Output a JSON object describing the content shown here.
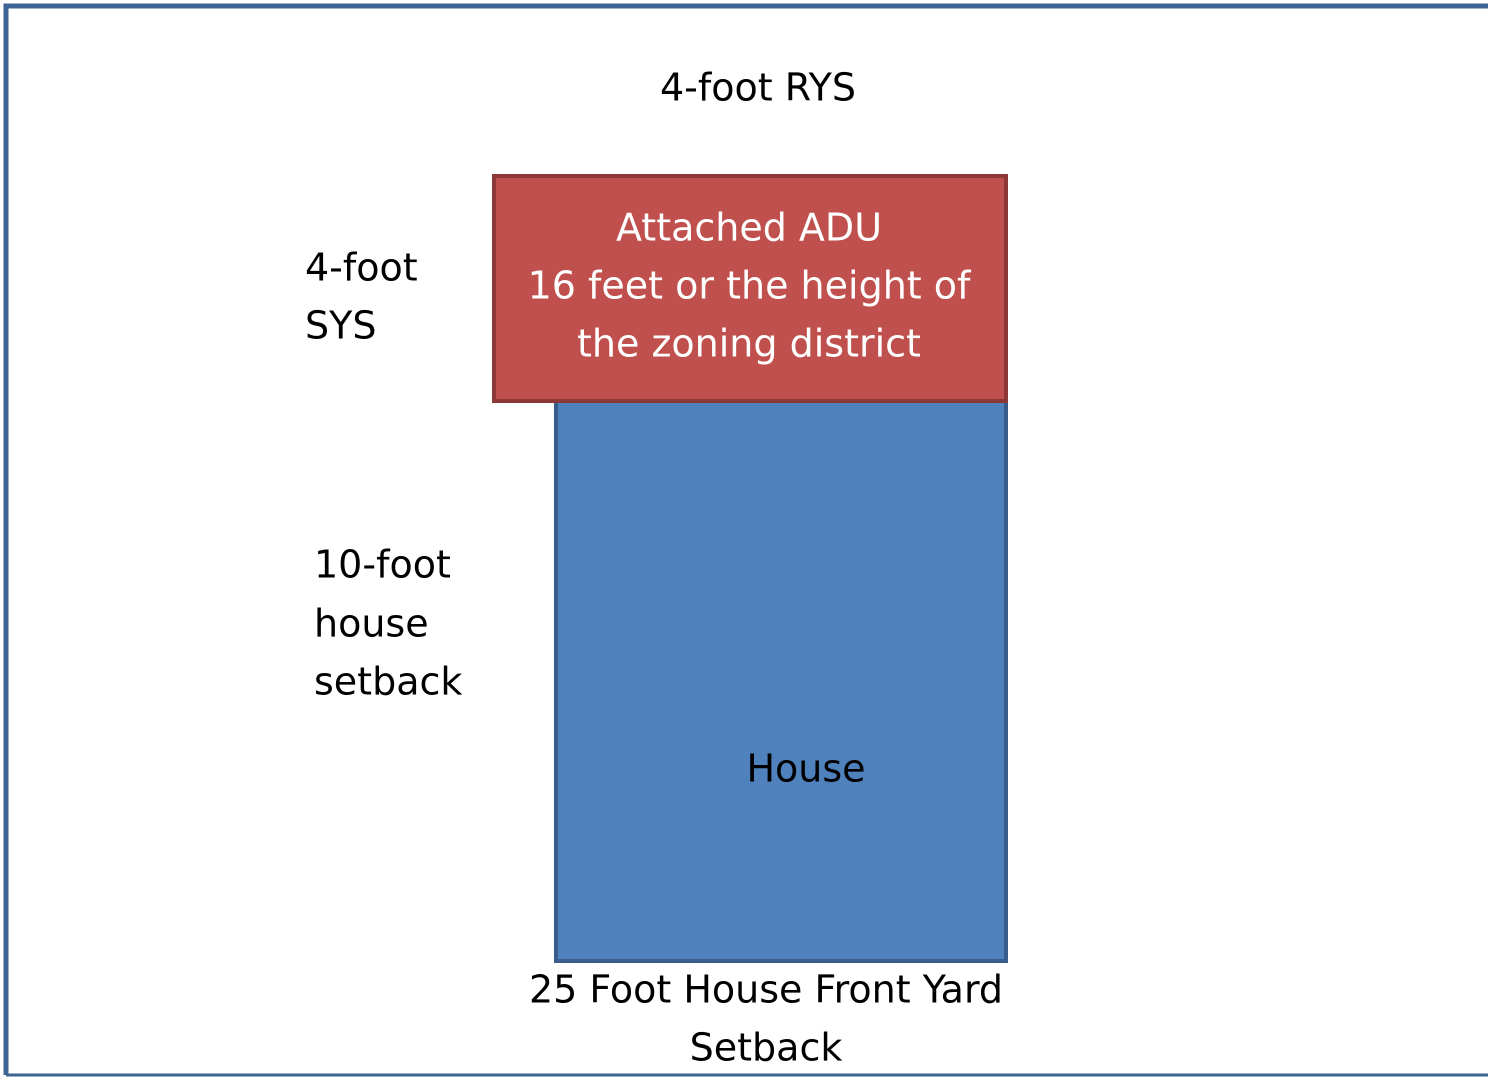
{
  "rear_setback": "4-foot RYS",
  "side_setback": [
    "4-foot",
    "SYS"
  ],
  "house_setback": [
    "10-foot",
    "house",
    "setback"
  ],
  "adu": {
    "lines": [
      "Attached ADU",
      "16 feet or the height of",
      "the zoning district"
    ]
  },
  "house": {
    "label": "House"
  },
  "front_setback": [
    "25 Foot House Front Yard",
    "Setback"
  ]
}
